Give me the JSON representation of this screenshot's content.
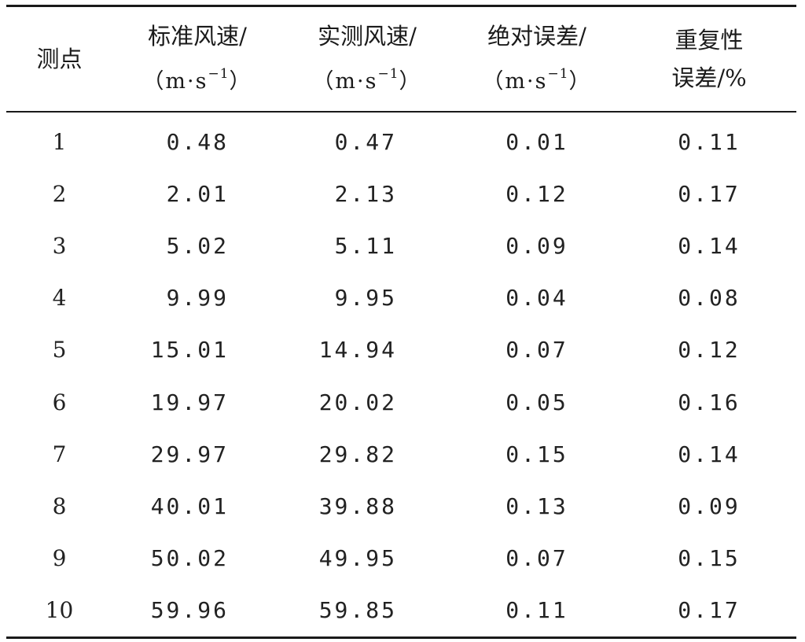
{
  "table": {
    "headers": [
      {
        "line1": "测点",
        "line2": "",
        "sup": "",
        "close": ""
      },
      {
        "line1": "标准风速/",
        "line2": "（m·s",
        "sup": "−1",
        "close": "）"
      },
      {
        "line1": "实测风速/",
        "line2": "（m·s",
        "sup": "−1",
        "close": "）"
      },
      {
        "line1": "绝对误差/",
        "line2": "（m·s",
        "sup": "−1",
        "close": "）"
      },
      {
        "line1": "重复性",
        "line2": "误差/%",
        "sup": "",
        "close": ""
      }
    ],
    "rows": [
      [
        "1",
        "0.48",
        "0.47",
        "0.01",
        "0.11"
      ],
      [
        "2",
        "2.01",
        "2.13",
        "0.12",
        "0.17"
      ],
      [
        "3",
        "5.02",
        "5.11",
        "0.09",
        "0.14"
      ],
      [
        "4",
        "9.99",
        "9.95",
        "0.04",
        "0.08"
      ],
      [
        "5",
        "15.01",
        "14.94",
        "0.07",
        "0.12"
      ],
      [
        "6",
        "19.97",
        "20.02",
        "0.05",
        "0.16"
      ],
      [
        "7",
        "29.97",
        "29.82",
        "0.15",
        "0.14"
      ],
      [
        "8",
        "40.01",
        "39.88",
        "0.13",
        "0.09"
      ],
      [
        "9",
        "50.02",
        "49.95",
        "0.07",
        "0.15"
      ],
      [
        "10",
        "59.96",
        "59.85",
        "0.11",
        "0.17"
      ]
    ]
  }
}
